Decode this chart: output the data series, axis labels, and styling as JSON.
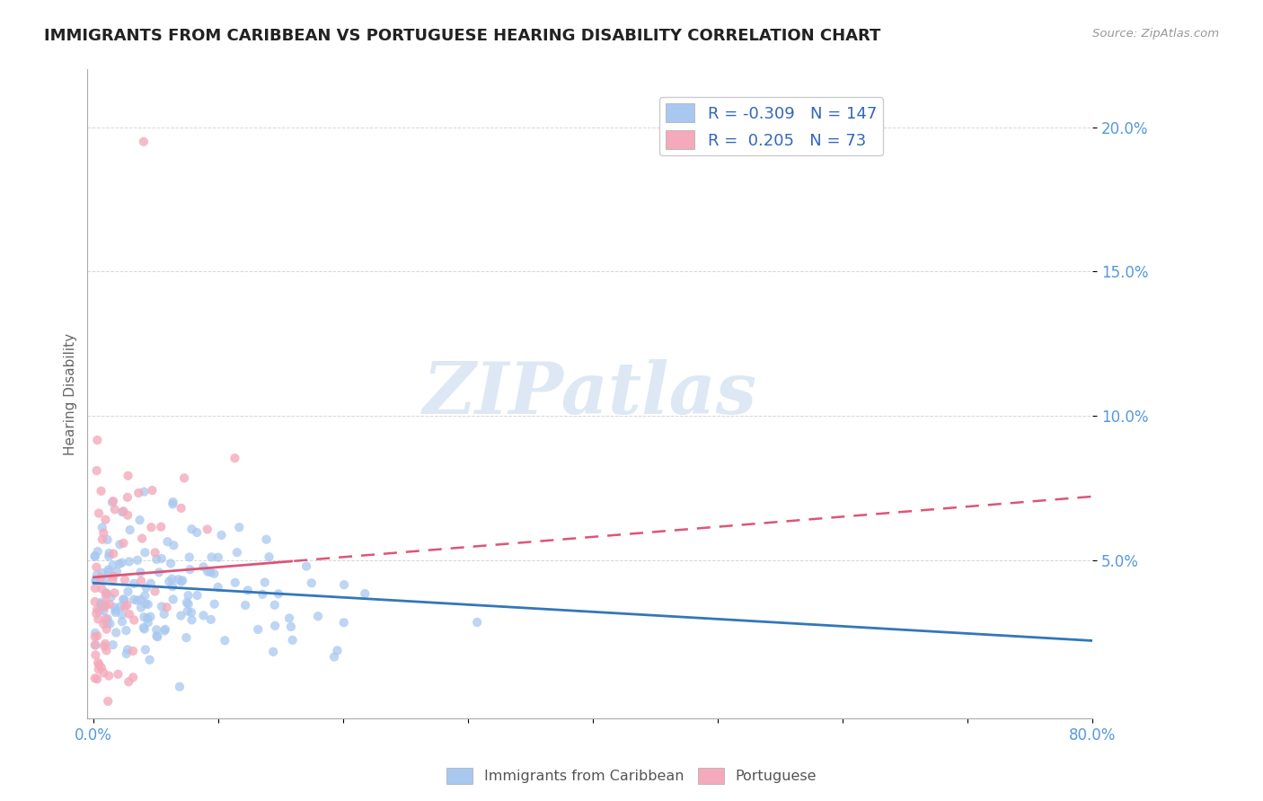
{
  "title": "IMMIGRANTS FROM CARIBBEAN VS PORTUGUESE HEARING DISABILITY CORRELATION CHART",
  "source": "Source: ZipAtlas.com",
  "ylabel": "Hearing Disability",
  "xlim": [
    -0.005,
    0.8
  ],
  "ylim": [
    -0.005,
    0.22
  ],
  "xticks": [
    0.0,
    0.1,
    0.2,
    0.3,
    0.4,
    0.5,
    0.6,
    0.7,
    0.8
  ],
  "xtick_labels": [
    "0.0%",
    "",
    "",
    "",
    "",
    "",
    "",
    "",
    "80.0%"
  ],
  "ytick_labels": [
    "5.0%",
    "10.0%",
    "15.0%",
    "20.0%"
  ],
  "ytick_vals": [
    0.05,
    0.1,
    0.15,
    0.2
  ],
  "caribbean_color": "#a8c8f0",
  "portuguese_color": "#f4aabb",
  "caribbean_R": -0.309,
  "caribbean_N": 147,
  "portuguese_R": 0.205,
  "portuguese_N": 73,
  "trend_caribbean_color": "#3377bb",
  "trend_portuguese_color": "#dd5577",
  "background_color": "#ffffff",
  "grid_color": "#cccccc",
  "label_color": "#5599dd",
  "title_fontsize": 13,
  "watermark_color": "#dde8f4",
  "caribbean_seed": 12345,
  "portuguese_seed": 67890
}
